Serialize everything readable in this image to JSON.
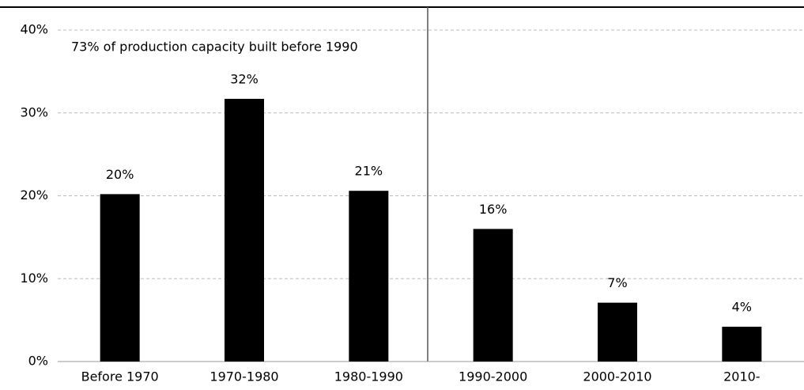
{
  "chart_data": {
    "type": "bar",
    "annotation": "73% of production capacity built before 1990",
    "categories": [
      "Before 1970",
      "1970-1980",
      "1980-1990",
      "1990-2000",
      "2000-2010",
      "2010-"
    ],
    "values": [
      20.2,
      31.7,
      20.6,
      16.0,
      7.1,
      4.2
    ],
    "value_labels": [
      "20%",
      "32%",
      "21%",
      "16%",
      "7%",
      "4%"
    ],
    "color": "#000000",
    "ylim": [
      0,
      40
    ],
    "yticks": [
      {
        "value": 0,
        "label": "0%"
      },
      {
        "value": 10,
        "label": "10%"
      },
      {
        "value": 20,
        "label": "20%"
      },
      {
        "value": 30,
        "label": "30%"
      },
      {
        "value": 40,
        "label": "40%"
      }
    ],
    "grid": true
  }
}
